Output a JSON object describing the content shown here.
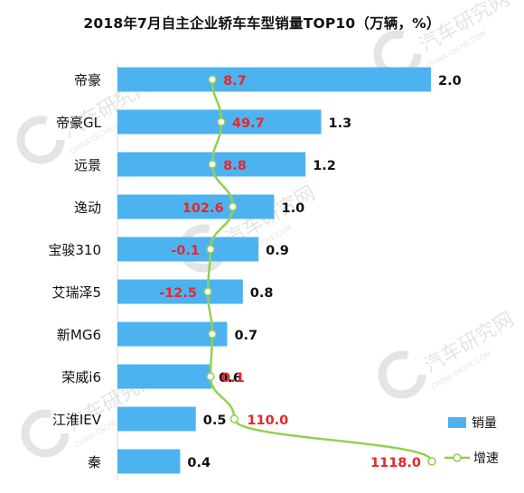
{
  "chart_data": {
    "type": "bar",
    "title": "2018年7月自主企业轿车车型销量TOP10（万辆，%）",
    "categories": [
      "帝豪",
      "帝豪GL",
      "远景",
      "逸动",
      "宝骏310",
      "艾瑞泽5",
      "新MG6",
      "荣威i6",
      "江淮IEV",
      "秦"
    ],
    "series": [
      {
        "name": "销量",
        "type": "bar",
        "values": [
          2.0,
          1.3,
          1.2,
          1.0,
          0.9,
          0.8,
          0.7,
          0.6,
          0.5,
          0.4
        ],
        "labels": [
          "2.0",
          "1.3",
          "1.2",
          "1.0",
          "0.9",
          "0.8",
          "0.7",
          "0.6",
          "0.5",
          "0.4"
        ]
      },
      {
        "name": "增速",
        "type": "line",
        "values": [
          8.7,
          49.7,
          8.8,
          102.6,
          -0.1,
          -12.5,
          null,
          0.1,
          110.0,
          1118.0
        ],
        "labels": [
          "8.7",
          "49.7",
          "8.8",
          "102.6",
          "-0.1",
          "-12.5",
          "",
          "0.1",
          "110.0",
          "1118.0"
        ]
      }
    ],
    "legend_position": "bottom-right",
    "colors": {
      "bar": "#4db3f0",
      "line": "#92d050",
      "growth_label": "#e8262d",
      "bar_label": "#111111"
    }
  },
  "watermark": {
    "text": "汽车研究网",
    "subtext": "CHINA-QICHE.COM"
  }
}
